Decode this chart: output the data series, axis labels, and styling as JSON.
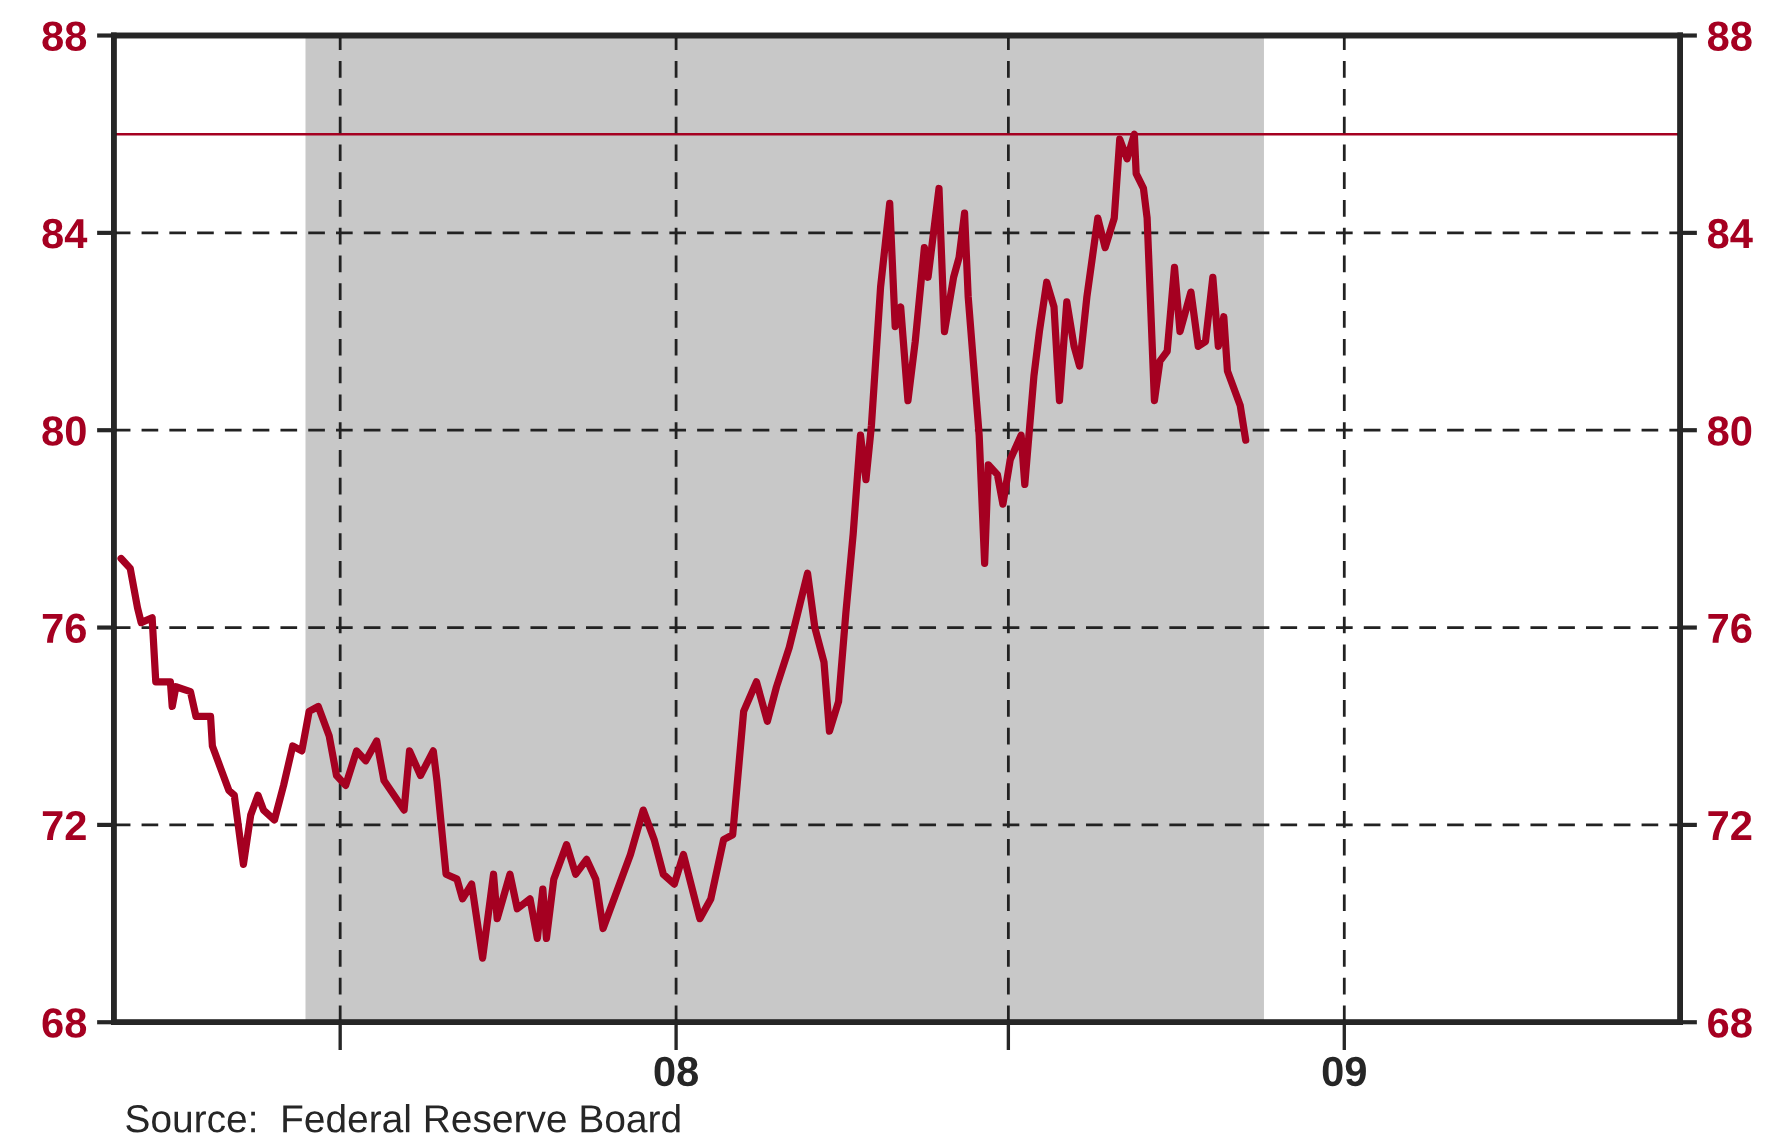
{
  "chart_data": {
    "type": "line",
    "x": [
      "2007-03-03",
      "2007-03-08",
      "2007-03-12",
      "2007-03-14",
      "2007-03-20",
      "2007-03-22",
      "2007-03-30",
      "2007-03-31",
      "2007-04-02",
      "2007-04-10",
      "2007-04-13",
      "2007-04-21",
      "2007-04-22",
      "2007-04-26",
      "2007-05-01",
      "2007-05-04",
      "2007-05-09",
      "2007-05-13",
      "2007-05-17",
      "2007-05-20",
      "2007-05-26",
      "2007-05-31",
      "2007-06-05",
      "2007-06-10",
      "2007-06-14",
      "2007-06-19",
      "2007-06-25",
      "2007-06-29",
      "2007-07-04",
      "2007-07-10",
      "2007-07-15",
      "2007-07-21",
      "2007-07-25",
      "2007-08-05",
      "2007-08-08",
      "2007-08-14",
      "2007-08-21",
      "2007-08-23",
      "2007-08-28",
      "2007-09-03",
      "2007-09-06",
      "2007-09-11",
      "2007-09-17",
      "2007-09-23",
      "2007-09-25",
      "2007-10-02",
      "2007-10-06",
      "2007-10-13",
      "2007-10-17",
      "2007-10-20",
      "2007-10-22",
      "2007-10-26",
      "2007-11-02",
      "2007-11-07",
      "2007-11-13",
      "2007-11-18",
      "2007-11-22",
      "2007-11-29",
      "2007-12-07",
      "2007-12-14",
      "2007-12-20",
      "2007-12-25",
      "2007-12-31",
      "2008-01-05",
      "2008-01-14",
      "2008-01-20",
      "2008-01-27",
      "2008-02-01",
      "2008-02-07",
      "2008-02-14",
      "2008-02-20",
      "2008-02-25",
      "2008-03-03",
      "2008-03-09",
      "2008-03-13",
      "2008-03-17",
      "2008-03-22",
      "2008-03-25",
      "2008-03-30",
      "2008-04-03",
      "2008-04-07",
      "2008-04-11",
      "2008-04-14",
      "2008-04-17",
      "2008-04-22",
      "2008-04-27",
      "2008-04-30",
      "2008-05-03",
      "2008-05-07",
      "2008-05-11",
      "2008-05-16",
      "2008-05-18",
      "2008-05-24",
      "2008-05-27",
      "2008-06-01",
      "2008-06-04",
      "2008-06-07",
      "2008-06-09",
      "2008-06-12",
      "2008-06-15",
      "2008-06-18",
      "2008-06-20",
      "2008-06-25",
      "2008-06-28",
      "2008-07-02",
      "2008-07-08",
      "2008-07-10",
      "2008-07-15",
      "2008-07-18",
      "2008-07-22",
      "2008-07-26",
      "2008-07-29",
      "2008-08-02",
      "2008-08-06",
      "2008-08-09",
      "2008-08-13",
      "2008-08-19",
      "2008-08-23",
      "2008-08-28",
      "2008-08-31",
      "2008-09-04",
      "2008-09-08",
      "2008-09-09",
      "2008-09-13",
      "2008-09-15",
      "2008-09-19",
      "2008-09-22",
      "2008-09-26",
      "2008-09-30",
      "2008-10-03",
      "2008-10-09",
      "2008-10-13",
      "2008-10-17",
      "2008-10-21",
      "2008-10-24",
      "2008-10-27",
      "2008-10-29",
      "2008-11-01",
      "2008-11-05",
      "2008-11-08"
    ],
    "series": [
      {
        "color": "#a50021",
        "values": [
          77.4,
          77.2,
          76.4,
          76.1,
          76.2,
          74.9,
          74.9,
          74.4,
          74.8,
          74.7,
          74.2,
          74.2,
          73.6,
          73.2,
          72.7,
          72.6,
          71.2,
          72.2,
          72.6,
          72.3,
          72.1,
          72.8,
          73.6,
          73.5,
          74.3,
          74.4,
          73.8,
          73.0,
          72.8,
          73.5,
          73.3,
          73.7,
          72.9,
          72.3,
          73.5,
          73.0,
          73.5,
          72.9,
          71.0,
          70.9,
          70.5,
          70.8,
          69.3,
          71.0,
          70.1,
          71.0,
          70.3,
          70.5,
          69.7,
          70.7,
          69.7,
          70.9,
          71.6,
          71.0,
          71.3,
          70.9,
          69.9,
          70.6,
          71.4,
          72.3,
          71.7,
          71.0,
          70.8,
          71.4,
          70.1,
          70.5,
          71.7,
          71.8,
          74.3,
          74.9,
          74.1,
          74.8,
          75.6,
          76.5,
          77.1,
          76.0,
          75.3,
          73.9,
          74.5,
          76.3,
          77.9,
          79.9,
          79.0,
          80.1,
          82.9,
          84.6,
          82.1,
          82.5,
          80.6,
          81.8,
          83.7,
          83.1,
          84.9,
          82.0,
          83.1,
          83.5,
          84.4,
          82.7,
          81.3,
          79.9,
          77.3,
          79.3,
          79.1,
          78.5,
          79.4,
          79.9,
          78.9,
          81.1,
          82.0,
          83.0,
          82.5,
          80.6,
          82.6,
          81.7,
          81.3,
          82.7,
          84.3,
          83.7,
          84.3,
          85.9,
          85.5,
          86.0,
          85.2,
          84.9,
          84.3,
          80.6,
          81.4,
          81.6,
          83.3,
          82.0,
          82.8,
          81.7,
          81.8,
          83.1,
          81.7,
          82.3,
          81.2,
          80.9,
          80.5,
          79.8
        ]
      }
    ],
    "xlim": [
      "2007-02-27",
      "2009-07-04"
    ],
    "xticks": [
      {
        "value": "2007-07-01",
        "label": null
      },
      {
        "value": "2008-01-01",
        "label": "08"
      },
      {
        "value": "2008-07-01",
        "label": null
      },
      {
        "value": "2009-01-01",
        "label": "09"
      }
    ],
    "ylim": [
      68,
      88
    ],
    "yticks": [
      68,
      72,
      76,
      80,
      84,
      88
    ],
    "y2lim": [
      68,
      88
    ],
    "y2ticks": [
      68,
      72,
      76,
      80,
      84,
      88
    ],
    "ref_lines": [
      {
        "axis": "y",
        "value": 86.0,
        "color": "#a50021"
      }
    ],
    "bands": [
      {
        "axis": "x",
        "from": "2007-06-12",
        "to": "2008-11-18",
        "color": "#c8c8c8"
      }
    ],
    "grid": true,
    "annotations": [
      "Source:  Federal Reserve Board"
    ]
  }
}
